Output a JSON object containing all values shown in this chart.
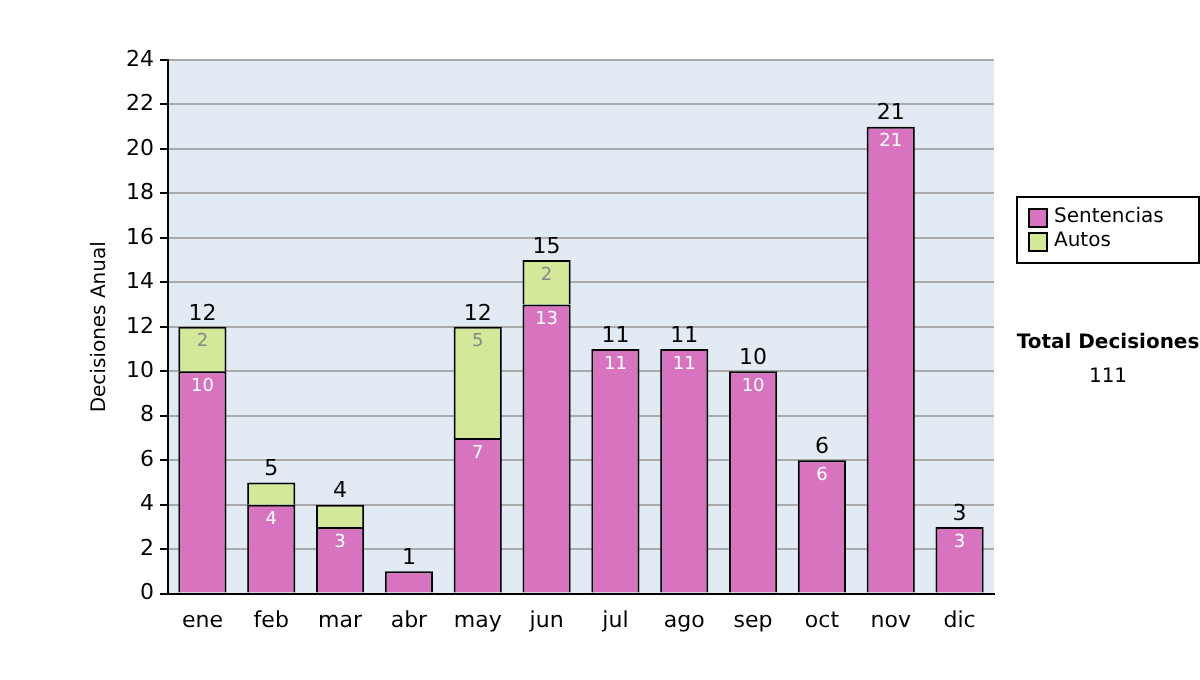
{
  "chart_data": {
    "type": "bar",
    "stacked": true,
    "ylabel": "Decisiones Anual",
    "categories": [
      "ene",
      "feb",
      "mar",
      "abr",
      "may",
      "jun",
      "jul",
      "ago",
      "sep",
      "oct",
      "nov",
      "dic"
    ],
    "series": [
      {
        "name": "Sentencias",
        "color": "#d873c0",
        "values": [
          10,
          4,
          3,
          1,
          7,
          13,
          11,
          11,
          10,
          6,
          21,
          3
        ],
        "value_labels": [
          "10",
          "4",
          "3",
          null,
          "7",
          "13",
          "11",
          "11",
          "10",
          "6",
          "21",
          "3"
        ]
      },
      {
        "name": "Autos",
        "color": "#d4e89a",
        "values": [
          2,
          1,
          1,
          0,
          5,
          2,
          0,
          0,
          0,
          0,
          0,
          0
        ],
        "value_labels": [
          "2",
          null,
          null,
          null,
          "5",
          "2",
          null,
          null,
          null,
          null,
          null,
          null
        ]
      }
    ],
    "totals": [
      "12",
      "5",
      "4",
      "1",
      "12",
      "15",
      "11",
      "11",
      "10",
      "6",
      "21",
      "3"
    ],
    "ylim": [
      0,
      24
    ],
    "yticks": [
      0,
      2,
      4,
      6,
      8,
      10,
      12,
      14,
      16,
      18,
      20,
      22,
      24
    ],
    "grid": "y",
    "legend": "right",
    "annotations": [
      "Total Decisiones",
      "111"
    ]
  }
}
